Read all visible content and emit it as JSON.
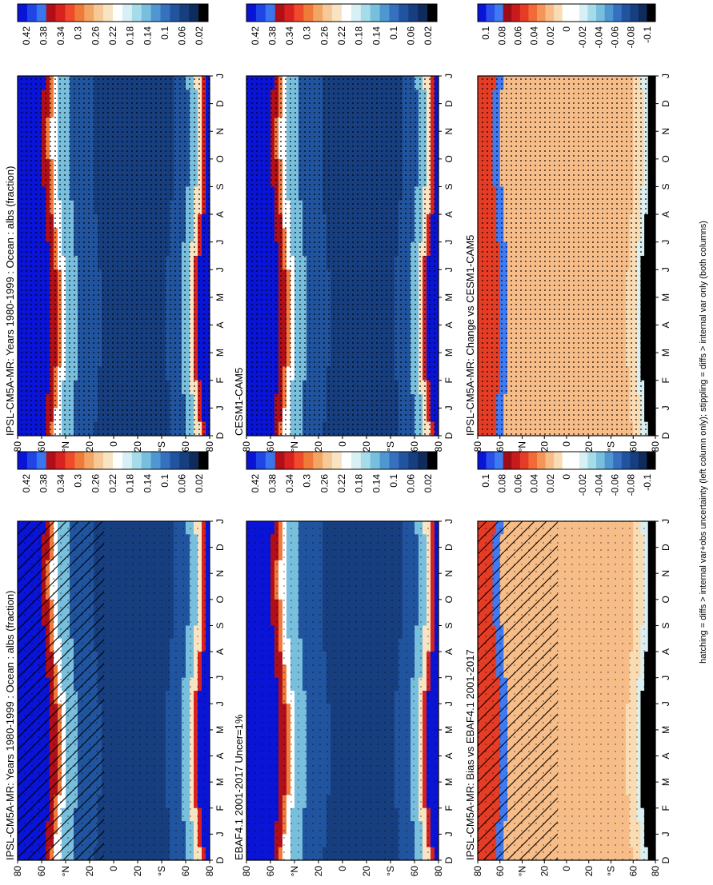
{
  "figure": {
    "footer_note": "hatching = diffs > internal var+obs uncertainty (left column only); stippling = diffs > internal var only (both columns)"
  },
  "chart_data": [
    {
      "type": "heatmap",
      "id": "p_mod_left",
      "title": "IPSL-CM5A-MR: Years 1980-1999 : Ocean : albs (fraction)",
      "x_ticks": [
        "D",
        "J",
        "F",
        "M",
        "A",
        "M",
        "J",
        "J",
        "A",
        "S",
        "O",
        "N",
        "D",
        "J"
      ],
      "y_ticks": [
        "80",
        "60",
        "°N",
        "20",
        "0",
        "20",
        "°S",
        "60",
        "80"
      ],
      "colorbar": {
        "labels": [
          "0.42",
          "0.38",
          "0.34",
          "0.3",
          "0.26",
          "0.22",
          "0.18",
          "0.14",
          "0.1",
          "0.06",
          "0.02"
        ],
        "colors": [
          "#0a14d6",
          "#1f45e6",
          "#3a75f0",
          "#b00f1a",
          "#d8221f",
          "#ef4a2a",
          "#f07a3a",
          "#f3a564",
          "#f6c998",
          "#f8e4c2",
          "#ffffff",
          "#d8f0f4",
          "#a6dcea",
          "#78bedd",
          "#4f97d0",
          "#3670bf",
          "#21549f",
          "#173f80",
          "#0e2b5c",
          "#000000"
        ]
      },
      "hatched": true,
      "stippled": "sparse"
    },
    {
      "type": "heatmap",
      "id": "p_mod_right",
      "title": "IPSL-CM5A-MR: Years 1980-1999 : Ocean : albs (fraction)",
      "x_ticks": [
        "D",
        "J",
        "F",
        "M",
        "A",
        "M",
        "J",
        "J",
        "A",
        "S",
        "O",
        "N",
        "D",
        "J"
      ],
      "y_ticks": [
        "80",
        "60",
        "°N",
        "20",
        "0",
        "20",
        "°S",
        "60",
        "80"
      ],
      "colorbar": {
        "labels": [
          "0.42",
          "0.38",
          "0.34",
          "0.3",
          "0.26",
          "0.22",
          "0.18",
          "0.14",
          "0.1",
          "0.06",
          "0.02"
        ]
      },
      "hatched": false,
      "stippled": "dense"
    },
    {
      "type": "heatmap",
      "id": "p_obs",
      "title": "EBAF4.1 2001-2017 Uncer=1%",
      "x_ticks": [
        "D",
        "J",
        "F",
        "M",
        "A",
        "M",
        "J",
        "J",
        "A",
        "S",
        "O",
        "N",
        "D",
        "J"
      ],
      "y_ticks": [
        "80",
        "60",
        "°N",
        "20",
        "0",
        "20",
        "°S",
        "60",
        "80"
      ],
      "colorbar": {
        "labels": [
          "0.42",
          "0.38",
          "0.34",
          "0.3",
          "0.26",
          "0.22",
          "0.18",
          "0.14",
          "0.1",
          "0.06",
          "0.02"
        ]
      },
      "hatched": false,
      "stippled": "sparse"
    },
    {
      "type": "heatmap",
      "id": "p_ref",
      "title": "CESM1-CAM5",
      "x_ticks": [
        "D",
        "J",
        "F",
        "M",
        "A",
        "M",
        "J",
        "J",
        "A",
        "S",
        "O",
        "N",
        "D",
        "J"
      ],
      "y_ticks": [
        "80",
        "60",
        "°N",
        "20",
        "0",
        "20",
        "°S",
        "60",
        "80"
      ],
      "colorbar": {
        "labels": [
          "0.42",
          "0.38",
          "0.34",
          "0.3",
          "0.26",
          "0.22",
          "0.18",
          "0.14",
          "0.1",
          "0.06",
          "0.02"
        ]
      },
      "hatched": false,
      "stippled": "dense"
    },
    {
      "type": "heatmap",
      "id": "p_bias",
      "title": "IPSL-CM5A-MR: Bias vs EBAF4.1 2001-2017",
      "x_ticks": [
        "D",
        "J",
        "F",
        "M",
        "A",
        "M",
        "J",
        "J",
        "A",
        "S",
        "O",
        "N",
        "D",
        "J"
      ],
      "y_ticks": [
        "80",
        "60",
        "°N",
        "20",
        "0",
        "20",
        "°S",
        "60",
        "80"
      ],
      "colorbar": {
        "labels": [
          "0.1",
          "0.08",
          "0.06",
          "0.04",
          "0.02",
          "0",
          "-0.02",
          "-0.04",
          "-0.06",
          "-0.08",
          "-0.1"
        ],
        "colors": [
          "#0a14d6",
          "#2850e8",
          "#3f7af2",
          "#9e0d16",
          "#c81b1d",
          "#e53c25",
          "#f26a35",
          "#f5955a",
          "#f7bd88",
          "#f9dcb4",
          "#ffffff",
          "#ffffff",
          "#d8f0f4",
          "#a6dcea",
          "#78bedd",
          "#4f97d0",
          "#3670bf",
          "#21549f",
          "#173f80",
          "#0e2b5c",
          "#000000"
        ]
      },
      "hatched": true,
      "stippled": "sparse"
    },
    {
      "type": "heatmap",
      "id": "p_change",
      "title": "IPSL-CM5A-MR: Change vs CESM1-CAM5",
      "x_ticks": [
        "D",
        "J",
        "F",
        "M",
        "A",
        "M",
        "J",
        "J",
        "A",
        "S",
        "O",
        "N",
        "D",
        "J"
      ],
      "y_ticks": [
        "80",
        "60",
        "°N",
        "20",
        "0",
        "20",
        "°S",
        "60",
        "80"
      ],
      "colorbar": {
        "labels": [
          "0.1",
          "0.08",
          "0.06",
          "0.04",
          "0.02",
          "0",
          "-0.02",
          "-0.04",
          "-0.06",
          "-0.08",
          "-0.1"
        ]
      },
      "hatched": false,
      "stippled": "dense"
    }
  ]
}
